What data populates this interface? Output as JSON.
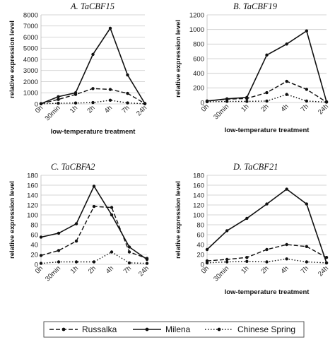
{
  "chart_data": [
    {
      "type": "line",
      "title": "A. TaCBF15",
      "xlabel": "low-temperature treatment",
      "ylabel": "relative expression level",
      "categories": [
        "0h",
        "30min",
        "1h",
        "2h",
        "4h",
        "7h",
        "24h"
      ],
      "ylim": [
        0,
        8000
      ],
      "yticks": [
        0,
        1000,
        2000,
        3000,
        4000,
        5000,
        6000,
        7000,
        8000
      ],
      "grid": "horizontal",
      "series": [
        {
          "name": "Russalka",
          "values": [
            20,
            400,
            850,
            1380,
            1300,
            950,
            30
          ]
        },
        {
          "name": "Milena",
          "values": [
            20,
            650,
            1000,
            4450,
            6800,
            2600,
            40
          ]
        },
        {
          "name": "Chinese Spring",
          "values": [
            10,
            60,
            80,
            120,
            330,
            90,
            10
          ]
        }
      ]
    },
    {
      "type": "line",
      "title": "B. TaCBF19",
      "xlabel": "low-temperature treatment",
      "ylabel": "relative expression level",
      "categories": [
        "0h",
        "30min",
        "1h",
        "2h",
        "4h",
        "7h",
        "24h"
      ],
      "ylim": [
        0,
        1200
      ],
      "yticks": [
        0,
        200,
        400,
        600,
        800,
        1000,
        1200
      ],
      "grid": "horizontal",
      "series": [
        {
          "name": "Russalka",
          "values": [
            20,
            45,
            55,
            135,
            290,
            180,
            5
          ]
        },
        {
          "name": "Milena",
          "values": [
            20,
            50,
            70,
            650,
            800,
            980,
            10
          ]
        },
        {
          "name": "Chinese Spring",
          "values": [
            10,
            15,
            15,
            20,
            110,
            20,
            5
          ]
        }
      ]
    },
    {
      "type": "line",
      "title": "C. TaCBFA2",
      "xlabel": "",
      "ylabel": "relative expression level",
      "categories": [
        "0h",
        "30min",
        "1h",
        "2h",
        "4h",
        "7h",
        "24h"
      ],
      "ylim": [
        0,
        180
      ],
      "yticks": [
        0,
        20,
        40,
        60,
        80,
        100,
        120,
        140,
        160,
        180
      ],
      "grid": "horizontal",
      "series": [
        {
          "name": "Russalka",
          "values": [
            18,
            28,
            47,
            117,
            115,
            25,
            12
          ]
        },
        {
          "name": "Milena",
          "values": [
            55,
            63,
            82,
            158,
            100,
            35,
            10
          ]
        },
        {
          "name": "Chinese Spring",
          "values": [
            2,
            5,
            5,
            5,
            25,
            3,
            2
          ]
        }
      ]
    },
    {
      "type": "line",
      "title": "D. TaCBF21",
      "xlabel": "low-temperature treatment",
      "ylabel": "relative expression level",
      "categories": [
        "0h",
        "30min",
        "1h",
        "2h",
        "4h",
        "7h",
        "24h"
      ],
      "ylim": [
        0,
        180
      ],
      "yticks": [
        0,
        20,
        40,
        60,
        80,
        100,
        120,
        140,
        160,
        180
      ],
      "grid": "horizontal",
      "series": [
        {
          "name": "Russalka",
          "values": [
            7,
            10,
            14,
            30,
            40,
            36,
            14
          ]
        },
        {
          "name": "Milena",
          "values": [
            30,
            68,
            93,
            122,
            152,
            122,
            3
          ]
        },
        {
          "name": "Chinese Spring",
          "values": [
            3,
            5,
            6,
            5,
            11,
            5,
            3
          ]
        }
      ]
    }
  ],
  "legend": {
    "placement": "bottom",
    "items": [
      {
        "name": "Russalka",
        "style": "dashed"
      },
      {
        "name": "Milena",
        "style": "solid"
      },
      {
        "name": "Chinese Spring",
        "style": "dotted"
      }
    ]
  },
  "colors": {
    "line": "#111111",
    "grid": "#c8c8c8",
    "axis": "#bbbbbb"
  }
}
